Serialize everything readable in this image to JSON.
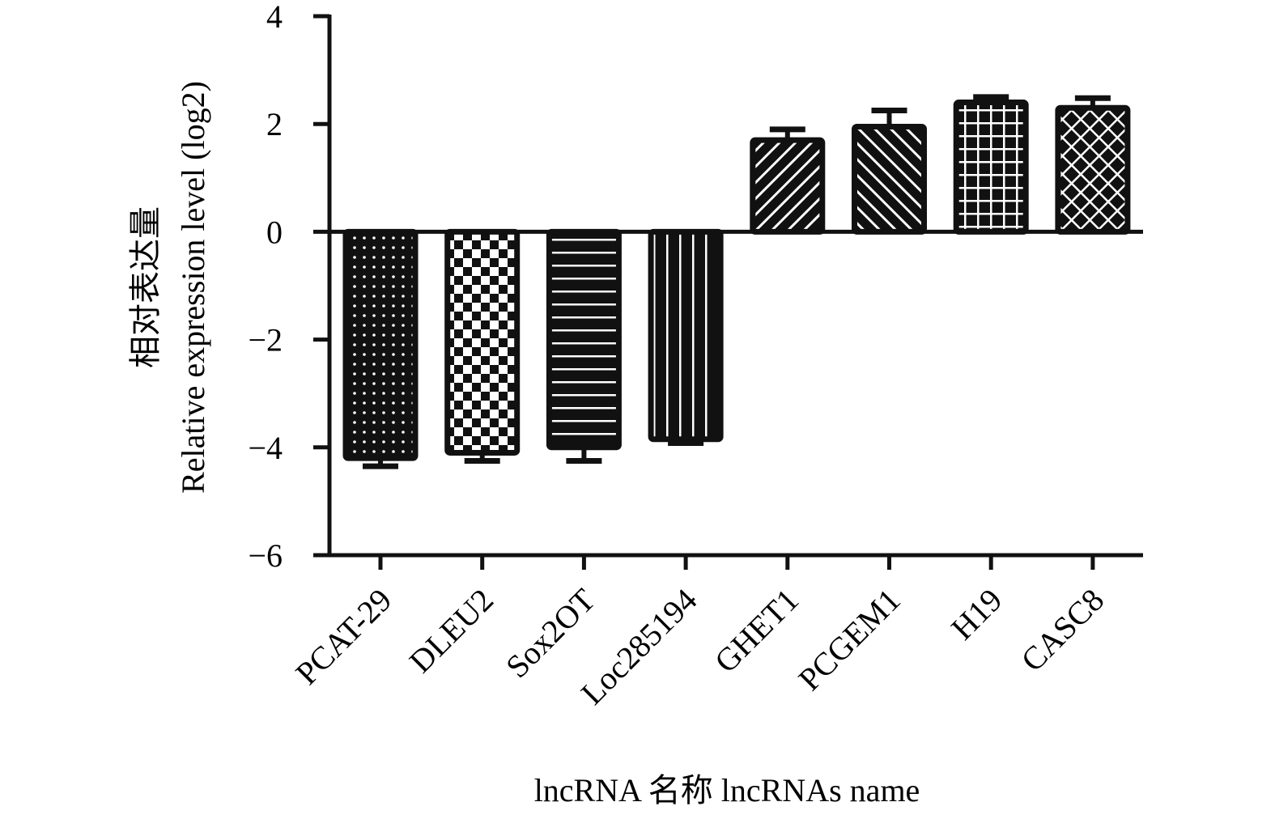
{
  "chart_data": {
    "type": "bar",
    "categories": [
      "PCAT-29",
      "DLEU2",
      "Sox2OT",
      "Loc285194",
      "GHET1",
      "PCGEM1",
      "H19",
      "CASC8"
    ],
    "values": [
      -4.2,
      -4.1,
      -4.0,
      -3.85,
      1.7,
      1.95,
      2.4,
      2.3
    ],
    "errors": [
      0.15,
      0.15,
      0.25,
      0.07,
      0.2,
      0.3,
      0.1,
      0.18
    ],
    "patterns": [
      "dots",
      "checker",
      "hlines",
      "vlines",
      "diag-right",
      "diag-left",
      "grid",
      "crosshatch"
    ],
    "ylim": [
      -6,
      4
    ],
    "yticks": [
      4,
      2,
      0,
      -2,
      -4,
      -6
    ],
    "ytick_labels": [
      "4",
      "2",
      "0",
      "−2",
      "−4",
      "−6"
    ],
    "ylabel_cn": "相对表达量",
    "ylabel_en": "Relative expression level (log2)",
    "xlabel": "lncRNA 名称 lncRNAs name",
    "bar_color": "#111111",
    "axis_color": "#111111"
  }
}
